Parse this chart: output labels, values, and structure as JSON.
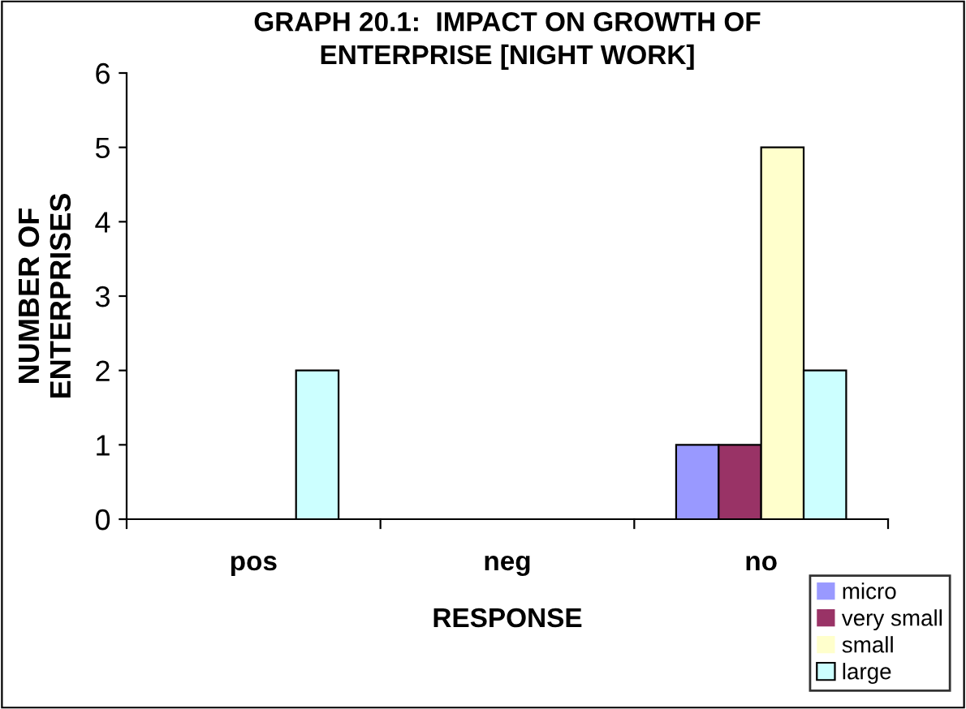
{
  "chart_data": {
    "type": "bar",
    "title": "GRAPH 20.1:  IMPACT ON GROWTH OF\nENTERPRISE [NIGHT WORK]",
    "xlabel": "RESPONSE",
    "ylabel": "NUMBER OF\nENTERPRISES",
    "categories": [
      "pos",
      "neg",
      "no"
    ],
    "series": [
      {
        "name": "micro",
        "color": "#9999ff",
        "values": [
          0,
          0,
          1
        ]
      },
      {
        "name": "very small",
        "color": "#993366",
        "values": [
          0,
          0,
          1
        ]
      },
      {
        "name": "small",
        "color": "#ffffcc",
        "values": [
          0,
          0,
          5
        ]
      },
      {
        "name": "large",
        "color": "#ccffff",
        "values": [
          2,
          0,
          2
        ]
      }
    ],
    "ylim": [
      0,
      6
    ],
    "yticks": [
      0,
      1,
      2,
      3,
      4,
      5,
      6
    ],
    "grid": false,
    "legend": "bottom right"
  }
}
